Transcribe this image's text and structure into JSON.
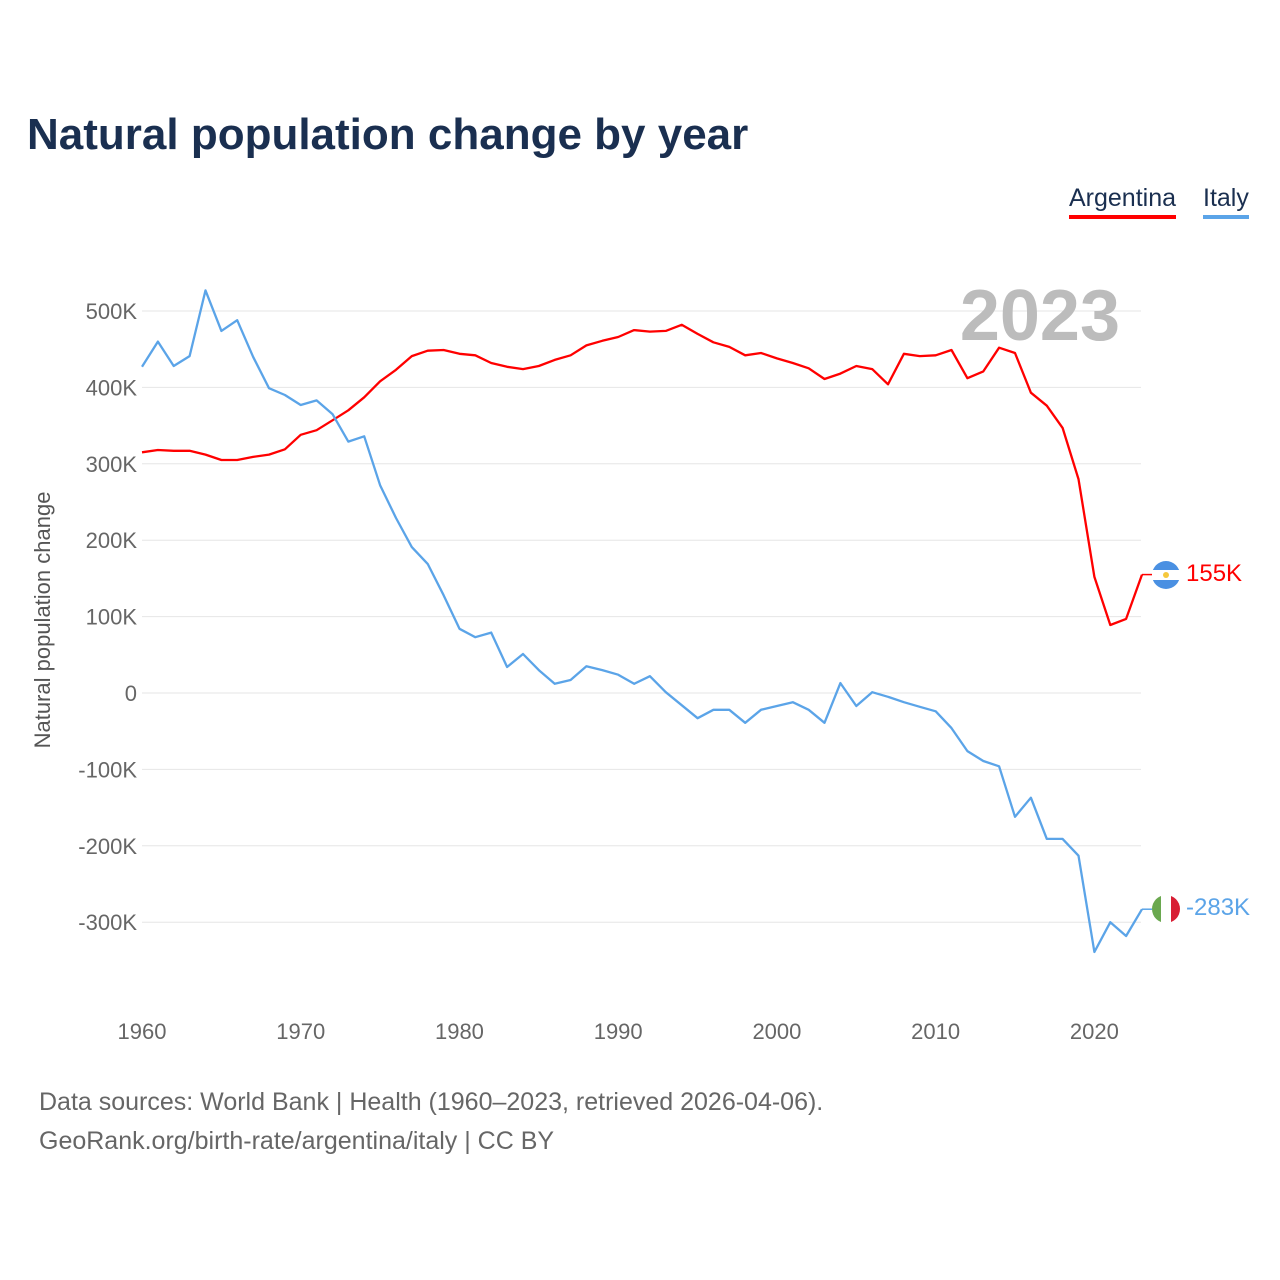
{
  "title": "Natural population change by year",
  "legend": [
    "Argentina",
    "Italy"
  ],
  "year_watermark": "2023",
  "end_labels": {
    "argentina": "155K",
    "italy": "-283K"
  },
  "footer": {
    "line1": "Data sources: World Bank | Health (1960–2023, retrieved 2026-04-06).",
    "line2": "GeoRank.org/birth-rate/argentina/italy | CC BY"
  },
  "colors": {
    "argentina": "#ff0000",
    "italy": "#5ba4e8"
  },
  "chart_data": {
    "type": "line",
    "title": "Natural population change by year",
    "xlabel": "",
    "ylabel": "Natural population change",
    "xlim": [
      1960,
      2023
    ],
    "ylim": [
      -400000,
      540000
    ],
    "x_ticks": [
      1960,
      1970,
      1980,
      1990,
      2000,
      2010,
      2020
    ],
    "y_ticks": [
      500000,
      400000,
      300000,
      200000,
      100000,
      0,
      -100000,
      -200000,
      -300000
    ],
    "y_tick_labels": [
      "500K",
      "400K",
      "300K",
      "200K",
      "100K",
      "0",
      "-100K",
      "-200K",
      "-300K"
    ],
    "grid": true,
    "legend_position": "top-right",
    "x": [
      1960,
      1961,
      1962,
      1963,
      1964,
      1965,
      1966,
      1967,
      1968,
      1969,
      1970,
      1971,
      1972,
      1973,
      1974,
      1975,
      1976,
      1977,
      1978,
      1979,
      1980,
      1981,
      1982,
      1983,
      1984,
      1985,
      1986,
      1987,
      1988,
      1989,
      1990,
      1991,
      1992,
      1993,
      1994,
      1995,
      1996,
      1997,
      1998,
      1999,
      2000,
      2001,
      2002,
      2003,
      2004,
      2005,
      2006,
      2007,
      2008,
      2009,
      2010,
      2011,
      2012,
      2013,
      2014,
      2015,
      2016,
      2017,
      2018,
      2019,
      2020,
      2021,
      2022,
      2023
    ],
    "series": [
      {
        "name": "Argentina",
        "values": [
          315000,
          318000,
          317000,
          317000,
          312000,
          305000,
          305000,
          309000,
          312000,
          319000,
          338000,
          344000,
          357000,
          370000,
          387000,
          408000,
          423000,
          441000,
          448000,
          449000,
          444000,
          442000,
          432000,
          427000,
          424000,
          428000,
          436000,
          442000,
          455000,
          461000,
          466000,
          475000,
          473000,
          474000,
          482000,
          470000,
          459000,
          453000,
          442000,
          445000,
          438000,
          432000,
          425000,
          411000,
          418000,
          428000,
          424000,
          404000,
          444000,
          441000,
          442000,
          449000,
          412000,
          421000,
          452000,
          445000,
          393000,
          376000,
          347000,
          280000,
          152000,
          89000,
          97000,
          155000
        ]
      },
      {
        "name": "Italy",
        "values": [
          427000,
          460000,
          428000,
          441000,
          527000,
          474000,
          488000,
          440000,
          399000,
          390000,
          377000,
          383000,
          365000,
          329000,
          336000,
          272000,
          229000,
          191000,
          169000,
          128000,
          84000,
          73000,
          79000,
          34000,
          51000,
          30000,
          12000,
          17000,
          35000,
          30000,
          24000,
          12000,
          22000,
          1000,
          -16000,
          -33000,
          -22000,
          -22000,
          -39000,
          -22000,
          -17000,
          -12000,
          -22000,
          -39000,
          13000,
          -17000,
          1000,
          -5000,
          -12000,
          -18000,
          -24000,
          -46000,
          -76000,
          -89000,
          -96000,
          -162000,
          -137000,
          -191000,
          -191000,
          -213000,
          -339000,
          -300000,
          -318000,
          -283000
        ]
      }
    ]
  }
}
